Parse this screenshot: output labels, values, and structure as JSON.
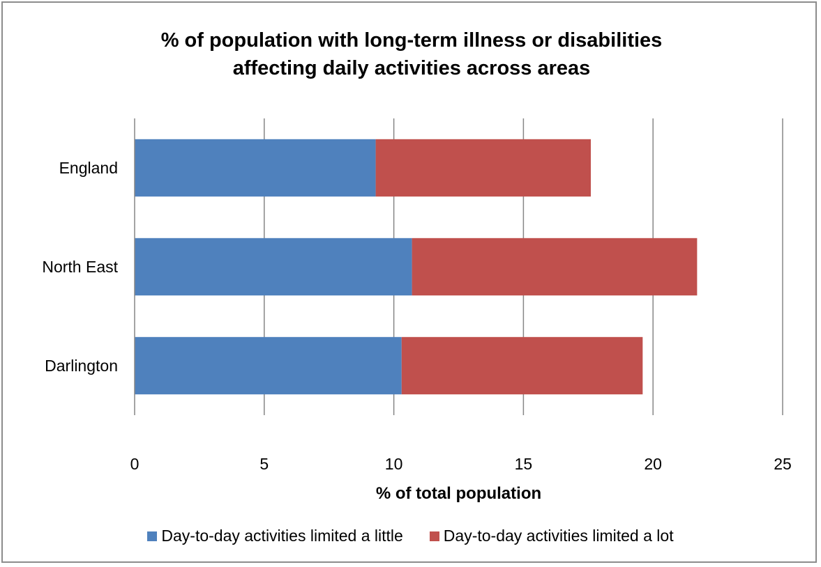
{
  "chart_data": {
    "type": "bar",
    "orientation": "horizontal",
    "stacked": true,
    "title": "% of population with long-term illness or disabilities affecting daily activities across areas",
    "title_lines": [
      "% of population with long-term illness or disabilities",
      "affecting daily activities across areas"
    ],
    "xlabel": "% of total population",
    "ylabel": "",
    "xlim": [
      0,
      25
    ],
    "x_ticks": [
      "0",
      "5",
      "10",
      "15",
      "20",
      "25"
    ],
    "x_tick_values": [
      0,
      5,
      10,
      15,
      20,
      25
    ],
    "grid": true,
    "legend_position": "bottom",
    "categories": [
      "England",
      "North East",
      "Darlington"
    ],
    "series": [
      {
        "name": "Day-to-day activities limited a little",
        "color": "#4f81bd",
        "values": [
          9.3,
          10.7,
          10.3
        ]
      },
      {
        "name": "Day-to-day activities limited a lot",
        "color": "#c0504d",
        "values": [
          8.3,
          11.0,
          9.3
        ]
      }
    ]
  }
}
